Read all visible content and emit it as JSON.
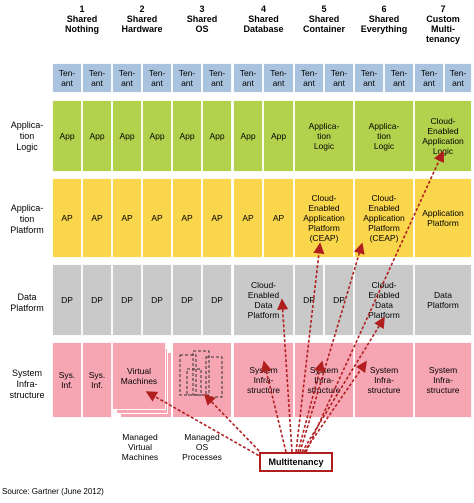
{
  "columns": [
    {
      "num": "1",
      "label": "Shared\nNothing"
    },
    {
      "num": "2",
      "label": "Shared\nHardware"
    },
    {
      "num": "3",
      "label": "Shared\nOS"
    },
    {
      "num": "4",
      "label": "Shared\nDatabase"
    },
    {
      "num": "5",
      "label": "Shared\nContainer"
    },
    {
      "num": "6",
      "label": "Shared\nEverything"
    },
    {
      "num": "7",
      "label": "Custom\nMulti-\ntenancy"
    }
  ],
  "rows": {
    "app_logic": "Applica-\ntion\nLogic",
    "app_platform": "Applica-\ntion\nPlatform",
    "data_platform": "Data\nPlatform",
    "sys_infra": "System\nInfra-\nstructure"
  },
  "tenant_label": "Ten-\nant",
  "cells": {
    "app": "App",
    "ap": "AP",
    "dp": "DP",
    "sys_inf": "Sys.\nInf.",
    "app_logic": "Applica-\ntion\nLogic",
    "cloud_app_logic": "Cloud-\nEnabled\nApplication\nLogic",
    "ceap": "Cloud-\nEnabled\nApplication\nPlatform\n(CEAP)",
    "app_platform": "Application\nPlatform",
    "cloud_data": "Cloud-\nEnabled\nData\nPlatform",
    "data_platform": "Data\nPlatform",
    "system_infra": "System\nInfra-\nstructure",
    "virtual_machines": "Virtual\nMachines"
  },
  "captions": {
    "managed_vm": "Managed\nVirtual\nMachines",
    "managed_os": "Managed\nOS\nProcesses"
  },
  "multitenancy": "Multitenancy",
  "source": "Source: Gartner (June 2012)",
  "colors": {
    "tenant": "#a9c3de",
    "app": "#b2d24e",
    "ap": "#f9d64b",
    "dp": "#c9c9c9",
    "sys": "#f6a6b3",
    "arrow": "#b01e1e"
  }
}
